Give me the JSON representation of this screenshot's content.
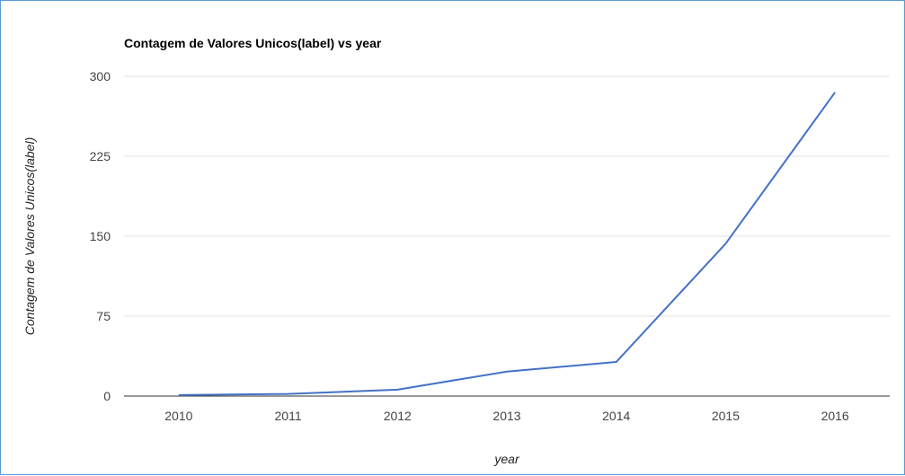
{
  "chart_data": {
    "type": "line",
    "title": "Contagem de Valores Unicos(label) vs year",
    "xlabel": "year",
    "ylabel": "Contagem de Valores Unicos(label)",
    "categories": [
      "2010",
      "2011",
      "2012",
      "2013",
      "2014",
      "2015",
      "2016"
    ],
    "series": [
      {
        "values": [
          1,
          2,
          6,
          23,
          32,
          143,
          285
        ]
      }
    ],
    "y_ticks": [
      "0",
      "75",
      "150",
      "225",
      "300"
    ],
    "ylim": [
      0,
      300
    ],
    "grid": true,
    "legend": "none",
    "line_color": "#4472c4"
  }
}
